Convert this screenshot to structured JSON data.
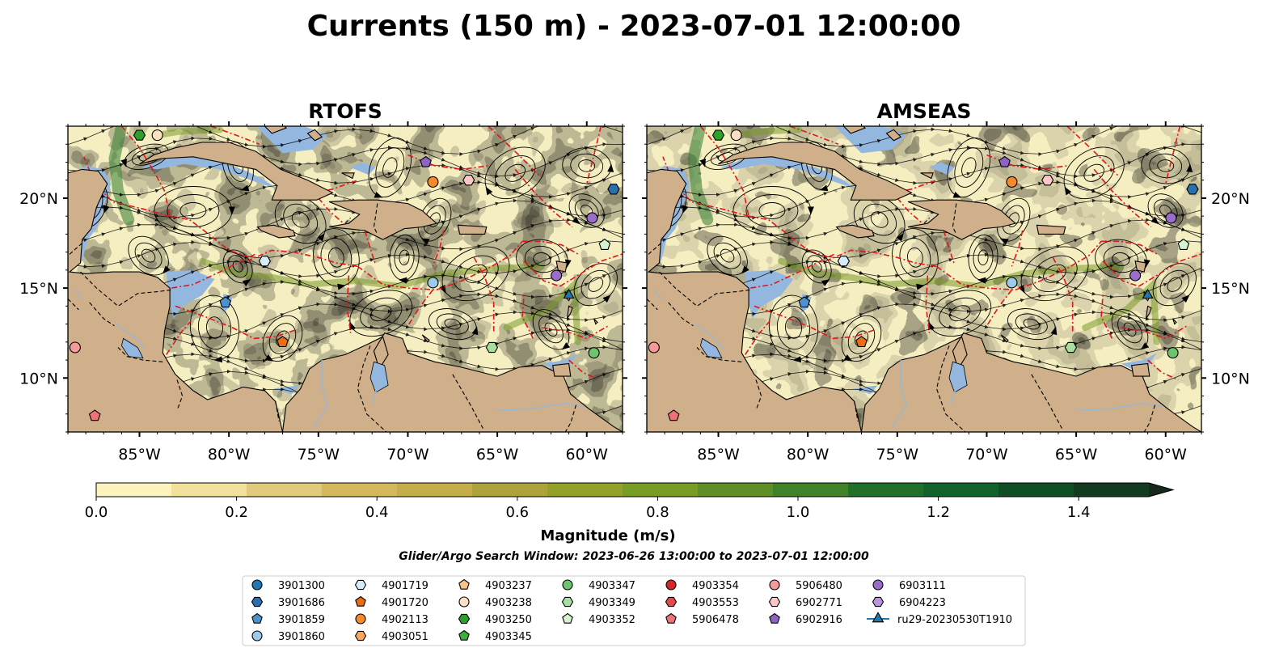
{
  "figure": {
    "title": "Currents (150 m) - 2023-07-01 12:00:00",
    "search_window": "Glider/Argo Search Window: 2023-06-26 13:00:00 to 2023-07-01 12:00:00"
  },
  "panels": [
    {
      "title": "RTOFS"
    },
    {
      "title": "AMSEAS"
    }
  ],
  "map": {
    "lon_range": [
      -89,
      -58
    ],
    "lat_range": [
      7,
      24
    ],
    "lon_ticks": [
      {
        "value": -85,
        "label": "85°W"
      },
      {
        "value": -80,
        "label": "80°W"
      },
      {
        "value": -75,
        "label": "75°W"
      },
      {
        "value": -70,
        "label": "70°W"
      },
      {
        "value": -65,
        "label": "65°W"
      },
      {
        "value": -60,
        "label": "60°W"
      }
    ],
    "lat_ticks": [
      {
        "value": 20,
        "label": "20°N"
      },
      {
        "value": 15,
        "label": "15°N"
      },
      {
        "value": 10,
        "label": "10°N"
      }
    ],
    "colors": {
      "ocean": "#f5eec0",
      "land": "#cfb08a",
      "shallow": "#94b7e0",
      "eez": "#e3141b",
      "streamline": "#000000",
      "border": "#000000"
    }
  },
  "colorbar": {
    "label": "Magnitude (m/s)",
    "min": 0.0,
    "max": 1.5,
    "extend": "max",
    "ticks": [
      {
        "value": 0.0,
        "label": "0.0"
      },
      {
        "value": 0.2,
        "label": "0.2"
      },
      {
        "value": 0.4,
        "label": "0.4"
      },
      {
        "value": 0.6,
        "label": "0.6"
      },
      {
        "value": 0.8,
        "label": "0.8"
      },
      {
        "value": 1.0,
        "label": "1.0"
      },
      {
        "value": 1.2,
        "label": "1.2"
      },
      {
        "value": 1.4,
        "label": "1.4"
      }
    ],
    "colors": [
      "#fcf4bc",
      "#f1e19c",
      "#e2ca7c",
      "#d3b85e",
      "#c4ae4a",
      "#aea33a",
      "#93a02a",
      "#789c25",
      "#5d8f26",
      "#3f8228",
      "#20702c",
      "#12622b",
      "#104e26",
      "#123b21",
      "#17291b"
    ]
  },
  "legend": {
    "items": [
      {
        "label": "3901300",
        "marker": "circle",
        "color": "#1f77b4"
      },
      {
        "label": "3901686",
        "marker": "hexagon",
        "color": "#2a6fae"
      },
      {
        "label": "3901859",
        "marker": "pentagon",
        "color": "#4a93cf"
      },
      {
        "label": "3901860",
        "marker": "circle",
        "color": "#9ecae9"
      },
      {
        "label": "4901719",
        "marker": "hexagon",
        "color": "#d6ecfa"
      },
      {
        "label": "4901720",
        "marker": "pentagon",
        "color": "#ec6c12"
      },
      {
        "label": "4902113",
        "marker": "circle",
        "color": "#f58a2b"
      },
      {
        "label": "4903051",
        "marker": "hexagon",
        "color": "#fba65e"
      },
      {
        "label": "4903237",
        "marker": "pentagon",
        "color": "#fdc28c"
      },
      {
        "label": "4903238",
        "marker": "circle",
        "color": "#fde0c2"
      },
      {
        "label": "4903250",
        "marker": "hexagon",
        "color": "#2ca02c"
      },
      {
        "label": "4903345",
        "marker": "pentagon",
        "color": "#3fae3f"
      },
      {
        "label": "4903347",
        "marker": "circle",
        "color": "#6cc56c"
      },
      {
        "label": "4903349",
        "marker": "hexagon",
        "color": "#a7dfa0"
      },
      {
        "label": "4903352",
        "marker": "pentagon",
        "color": "#d6f3cf"
      },
      {
        "label": "4903354",
        "marker": "circle",
        "color": "#d62728"
      },
      {
        "label": "4903553",
        "marker": "hexagon",
        "color": "#e04a4c"
      },
      {
        "label": "5906478",
        "marker": "pentagon",
        "color": "#ec7376"
      },
      {
        "label": "5906480",
        "marker": "circle",
        "color": "#f5999b"
      },
      {
        "label": "6902771",
        "marker": "hexagon",
        "color": "#fcc6c6"
      },
      {
        "label": "6902916",
        "marker": "pentagon",
        "color": "#8f63c2"
      },
      {
        "label": "6903111",
        "marker": "circle",
        "color": "#9a6dcc"
      },
      {
        "label": "6904223",
        "marker": "hexagon",
        "color": "#b897dc"
      },
      {
        "label": "ru29-20230530T1910",
        "marker": "triangle-line",
        "color": "#1f77b4"
      }
    ]
  },
  "markers": [
    {
      "lon": -85.0,
      "lat": 23.5,
      "marker": "hexagon",
      "color": "#2ca02c"
    },
    {
      "lon": -84.0,
      "lat": 23.5,
      "marker": "circle",
      "color": "#fde0c2"
    },
    {
      "lon": -69.0,
      "lat": 22.0,
      "marker": "pentagon",
      "color": "#8f63c2"
    },
    {
      "lon": -68.6,
      "lat": 20.9,
      "marker": "circle",
      "color": "#f58a2b"
    },
    {
      "lon": -66.6,
      "lat": 21.0,
      "marker": "hexagon",
      "color": "#fcc6c6"
    },
    {
      "lon": -58.5,
      "lat": 20.5,
      "marker": "hexagon",
      "color": "#2a6fae"
    },
    {
      "lon": -59.7,
      "lat": 18.9,
      "marker": "circle",
      "color": "#9a6dcc"
    },
    {
      "lon": -59.0,
      "lat": 17.4,
      "marker": "pentagon",
      "color": "#d6f3cf"
    },
    {
      "lon": -78.0,
      "lat": 16.5,
      "marker": "hexagon",
      "color": "#d6ecfa"
    },
    {
      "lon": -68.6,
      "lat": 15.3,
      "marker": "circle",
      "color": "#9ecae9"
    },
    {
      "lon": -61.7,
      "lat": 15.7,
      "marker": "circle",
      "color": "#9a6dcc"
    },
    {
      "lon": -61.0,
      "lat": 14.6,
      "marker": "triangle",
      "color": "#1f77b4"
    },
    {
      "lon": -80.2,
      "lat": 14.2,
      "marker": "pentagon",
      "color": "#4a93cf"
    },
    {
      "lon": -77.0,
      "lat": 12.0,
      "marker": "pentagon",
      "color": "#ec6c12"
    },
    {
      "lon": -88.6,
      "lat": 11.7,
      "marker": "circle",
      "color": "#f5999b"
    },
    {
      "lon": -65.3,
      "lat": 11.7,
      "marker": "hexagon",
      "color": "#a7dfa0"
    },
    {
      "lon": -59.6,
      "lat": 11.4,
      "marker": "circle",
      "color": "#6cc56c"
    },
    {
      "lon": -87.5,
      "lat": 7.9,
      "marker": "pentagon",
      "color": "#ec7376"
    }
  ]
}
